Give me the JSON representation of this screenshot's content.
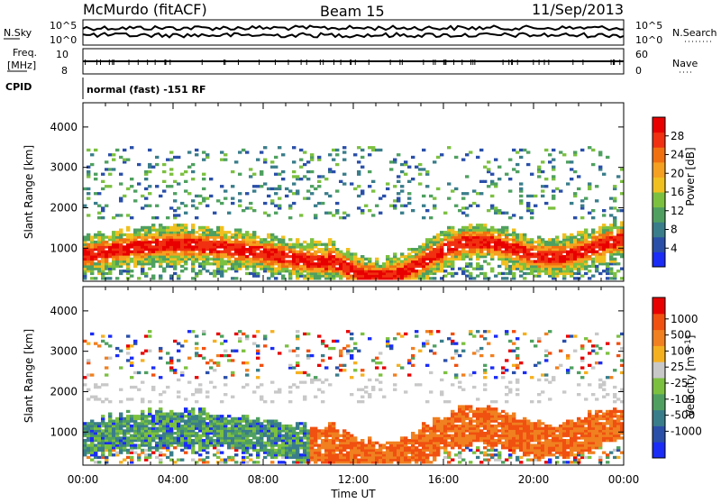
{
  "header": {
    "station": "McMurdo (fitACF)",
    "beam": "Beam 15",
    "date": "11/Sep/2013"
  },
  "top_panels": {
    "nsky_label": "N.Sky",
    "nsky_ticks": [
      "10^5",
      "10^0"
    ],
    "nsearch_label": "N.Search",
    "nsearch_ticks": [
      "10^5",
      "10^0"
    ],
    "freq_label_1": "Freq.",
    "freq_label_2": "[MHz]",
    "freq_ticks": [
      "10",
      "8"
    ],
    "nave_label": "Nave",
    "nave_ticks": [
      "60",
      "0"
    ],
    "cpid_label": "CPID",
    "cpid_text": "normal (fast) -151 RF"
  },
  "chart_data": [
    {
      "type": "heatmap",
      "name": "power",
      "ylabel": "Slant Range [km]",
      "ylim": [
        180,
        4600
      ],
      "y_ticks": [
        1000,
        2000,
        3000,
        4000
      ],
      "x_ticks": [
        "00:00",
        "04:00",
        "08:00",
        "12:00",
        "16:00",
        "20:00",
        "00:00"
      ],
      "colorbar_label": "Power [dB]",
      "colorbar_ticks": [
        "4",
        "8",
        "12",
        "16",
        "20",
        "24",
        "28"
      ],
      "colorbar_colors": [
        "#1a2cf5",
        "#2a4fa8",
        "#3a7d8a",
        "#4fa060",
        "#7cc040",
        "#f0c020",
        "#f5a020",
        "#f07010",
        "#f03010",
        "#e80000"
      ]
    },
    {
      "type": "heatmap",
      "name": "velocity",
      "ylabel": "Slant Range [km]",
      "xlabel": "Time UT",
      "ylim": [
        180,
        4600
      ],
      "y_ticks": [
        1000,
        2000,
        3000,
        4000
      ],
      "x_ticks": [
        "00:00",
        "04:00",
        "08:00",
        "12:00",
        "16:00",
        "20:00",
        "00:00"
      ],
      "colorbar_label": "Velocity [m s",
      "colorbar_label_sup": "-1",
      "colorbar_label_end": "]",
      "colorbar_ticks": [
        "1000",
        "500",
        "100",
        "25",
        "-25",
        "-100",
        "-500",
        "-1000"
      ],
      "colorbar_colors": [
        "#1a2cf5",
        "#2a4fa8",
        "#3a7d8a",
        "#4fa060",
        "#7cc040",
        "#c8c8c8",
        "#f5b020",
        "#f08020",
        "#f05010",
        "#e80000"
      ]
    }
  ]
}
